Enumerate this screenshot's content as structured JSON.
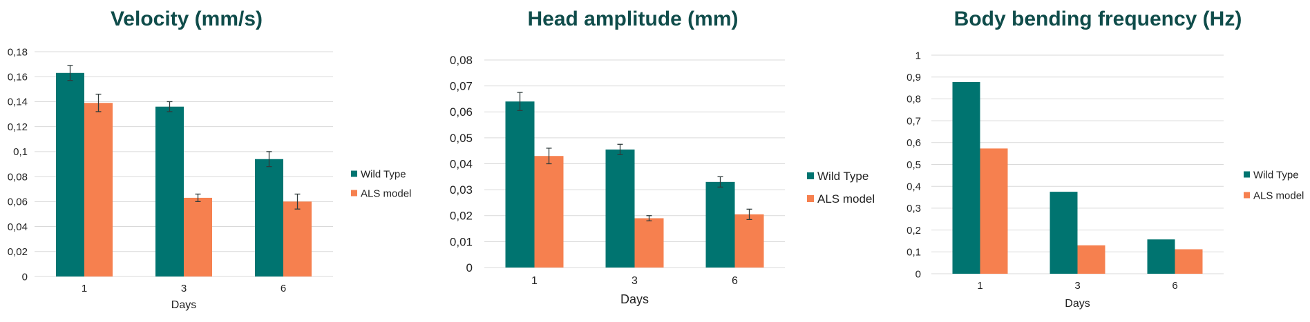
{
  "colors": {
    "wild_type": "#007470",
    "als_model": "#F6804F",
    "title": "#0F4C4A",
    "grid": "#D9D9D9",
    "axis_text": "#222222",
    "error_bar": "#2f3b3b"
  },
  "chart_data": [
    {
      "type": "bar",
      "title": "Velocity (mm/s)",
      "xlabel": "Days",
      "ylabel": "",
      "categories": [
        "1",
        "3",
        "6"
      ],
      "ylim": [
        0,
        0.18
      ],
      "yticks": [
        "0",
        "0,02",
        "0,04",
        "0,06",
        "0,08",
        "0,1",
        "0,12",
        "0,14",
        "0,16",
        "0,18"
      ],
      "grid": true,
      "legend_position": "right",
      "series": [
        {
          "name": "Wild Type",
          "values": [
            0.163,
            0.136,
            0.094
          ],
          "errors": [
            0.006,
            0.004,
            0.006
          ]
        },
        {
          "name": "ALS model",
          "values": [
            0.139,
            0.063,
            0.06
          ],
          "errors": [
            0.007,
            0.003,
            0.006
          ]
        }
      ]
    },
    {
      "type": "bar",
      "title": "Head amplitude (mm)",
      "xlabel": "Days",
      "ylabel": "",
      "categories": [
        "1",
        "3",
        "6"
      ],
      "ylim": [
        0,
        0.08
      ],
      "yticks": [
        "0",
        "0,01",
        "0,02",
        "0,03",
        "0,04",
        "0,05",
        "0,06",
        "0,07",
        "0,08"
      ],
      "grid": true,
      "legend_position": "right",
      "series": [
        {
          "name": "Wild Type",
          "values": [
            0.064,
            0.0455,
            0.033
          ],
          "errors": [
            0.0035,
            0.002,
            0.002
          ]
        },
        {
          "name": "ALS model",
          "values": [
            0.043,
            0.019,
            0.0205
          ],
          "errors": [
            0.003,
            0.001,
            0.002
          ]
        }
      ]
    },
    {
      "type": "bar",
      "title": "Body bending frequency (Hz)",
      "xlabel": "Days",
      "ylabel": "",
      "categories": [
        "1",
        "3",
        "6"
      ],
      "ylim": [
        0,
        1
      ],
      "yticks": [
        "0",
        "0,1",
        "0,2",
        "0,3",
        "0,4",
        "0,5",
        "0,6",
        "0,7",
        "0,8",
        "0,9",
        "1"
      ],
      "grid": true,
      "legend_position": "right",
      "series": [
        {
          "name": "Wild Type",
          "values": [
            0.877,
            0.375,
            0.157
          ],
          "errors": []
        },
        {
          "name": "ALS model",
          "values": [
            0.573,
            0.13,
            0.112
          ],
          "errors": []
        }
      ]
    }
  ]
}
